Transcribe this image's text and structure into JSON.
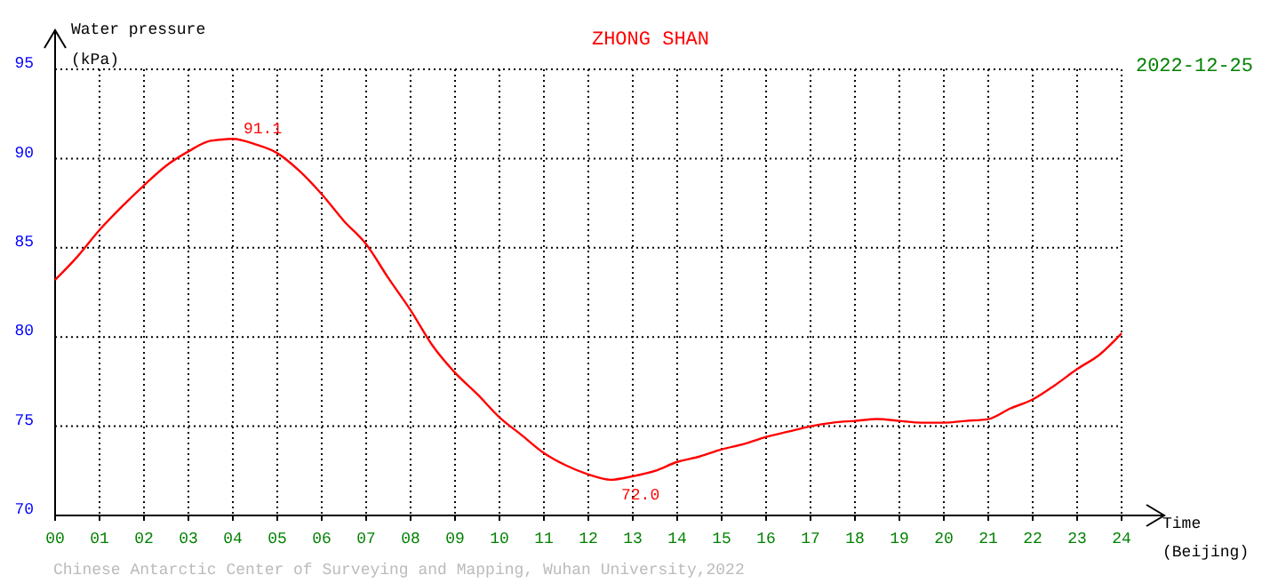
{
  "chart_data": {
    "type": "line",
    "title": "ZHONG SHAN",
    "subtitle": "2022-12-25",
    "ylabel": "Water pressure (kPa)",
    "xlabel": "Time (Beijing)",
    "x": [
      0,
      0.5,
      1,
      1.5,
      2,
      2.5,
      3,
      3.5,
      4,
      4.5,
      5,
      5.5,
      6,
      6.5,
      7,
      7.5,
      8,
      8.5,
      9,
      9.5,
      10,
      10.5,
      11,
      11.5,
      12,
      12.5,
      13,
      13.5,
      14,
      14.5,
      15,
      15.5,
      16,
      16.5,
      17,
      17.5,
      18,
      18.5,
      19,
      19.5,
      20,
      20.5,
      21,
      21.5,
      22,
      22.5,
      23,
      23.5,
      24
    ],
    "series": [
      {
        "color": "#ff0000",
        "values": [
          83.2,
          84.5,
          86,
          87.3,
          88.5,
          89.6,
          90.4,
          91.0,
          91.1,
          90.8,
          90.3,
          89.3,
          88,
          86.5,
          85.2,
          83.3,
          81.5,
          79.5,
          78,
          76.8,
          75.5,
          74.5,
          73.5,
          72.8,
          72.3,
          72.0,
          72.2,
          72.5,
          73,
          73.3,
          73.7,
          74,
          74.4,
          74.7,
          75,
          75.2,
          75.3,
          75.4,
          75.3,
          75.2,
          75.2,
          75.3,
          75.4,
          76,
          76.5,
          77.3,
          78.2,
          79,
          80.2
        ]
      }
    ],
    "xlim": [
      0,
      24
    ],
    "xticks": [
      {
        "value": 0,
        "label": "00"
      },
      {
        "value": 1,
        "label": "01"
      },
      {
        "value": 2,
        "label": "02"
      },
      {
        "value": 3,
        "label": "03"
      },
      {
        "value": 4,
        "label": "04"
      },
      {
        "value": 5,
        "label": "05"
      },
      {
        "value": 6,
        "label": "06"
      },
      {
        "value": 7,
        "label": "07"
      },
      {
        "value": 8,
        "label": "08"
      },
      {
        "value": 9,
        "label": "09"
      },
      {
        "value": 10,
        "label": "10"
      },
      {
        "value": 11,
        "label": "11"
      },
      {
        "value": 12,
        "label": "12"
      },
      {
        "value": 13,
        "label": "13"
      },
      {
        "value": 14,
        "label": "14"
      },
      {
        "value": 15,
        "label": "15"
      },
      {
        "value": 16,
        "label": "16"
      },
      {
        "value": 17,
        "label": "17"
      },
      {
        "value": 18,
        "label": "18"
      },
      {
        "value": 19,
        "label": "19"
      },
      {
        "value": 20,
        "label": "20"
      },
      {
        "value": 21,
        "label": "21"
      },
      {
        "value": 22,
        "label": "22"
      },
      {
        "value": 23,
        "label": "23"
      },
      {
        "value": 24,
        "label": "24"
      }
    ],
    "ylim": [
      70,
      95
    ],
    "yticks": [
      70,
      75,
      80,
      85,
      90,
      95
    ],
    "grid": true,
    "marker": "none",
    "line_style": "solid",
    "annotations": [
      {
        "text": "91.1",
        "x": 4,
        "y": 91.1
      },
      {
        "text": "72.0",
        "x": 12.5,
        "y": 72.0
      },
      "Chinese Antarctic Center of Surveying and Mapping, Wuhan University,2022"
    ]
  }
}
